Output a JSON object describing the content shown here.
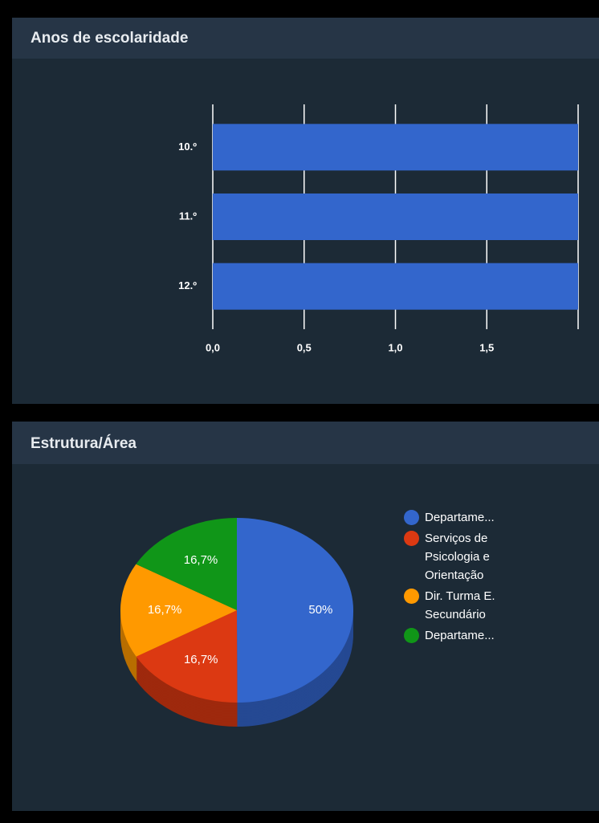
{
  "chart_data": [
    {
      "type": "bar",
      "orientation": "horizontal",
      "title": "Anos de escolaridade",
      "categories": [
        "10.º",
        "11.º",
        "12.º"
      ],
      "values": [
        2,
        2,
        2
      ],
      "color": "#3366cc",
      "xlim": [
        0,
        2
      ],
      "xticks": [
        {
          "value": 0,
          "label": "0,0"
        },
        {
          "value": 0.5,
          "label": "0,5"
        },
        {
          "value": 1,
          "label": "1,0"
        },
        {
          "value": 1.5,
          "label": "1,5"
        }
      ],
      "grid": true
    },
    {
      "type": "pie",
      "style": "3d",
      "title": "Estrutura/Área",
      "categories": [
        "Departame...",
        "Serviços de Psicologia e Orientação",
        "Dir. Turma E. Secundário",
        "Departame..."
      ],
      "values": [
        50,
        16.7,
        16.7,
        16.7
      ],
      "value_labels": [
        "50%",
        "16,7%",
        "16,7%",
        "16,7%"
      ],
      "colors": [
        "#3366cc",
        "#dc3912",
        "#ff9900",
        "#109618"
      ],
      "legend": "right"
    }
  ]
}
